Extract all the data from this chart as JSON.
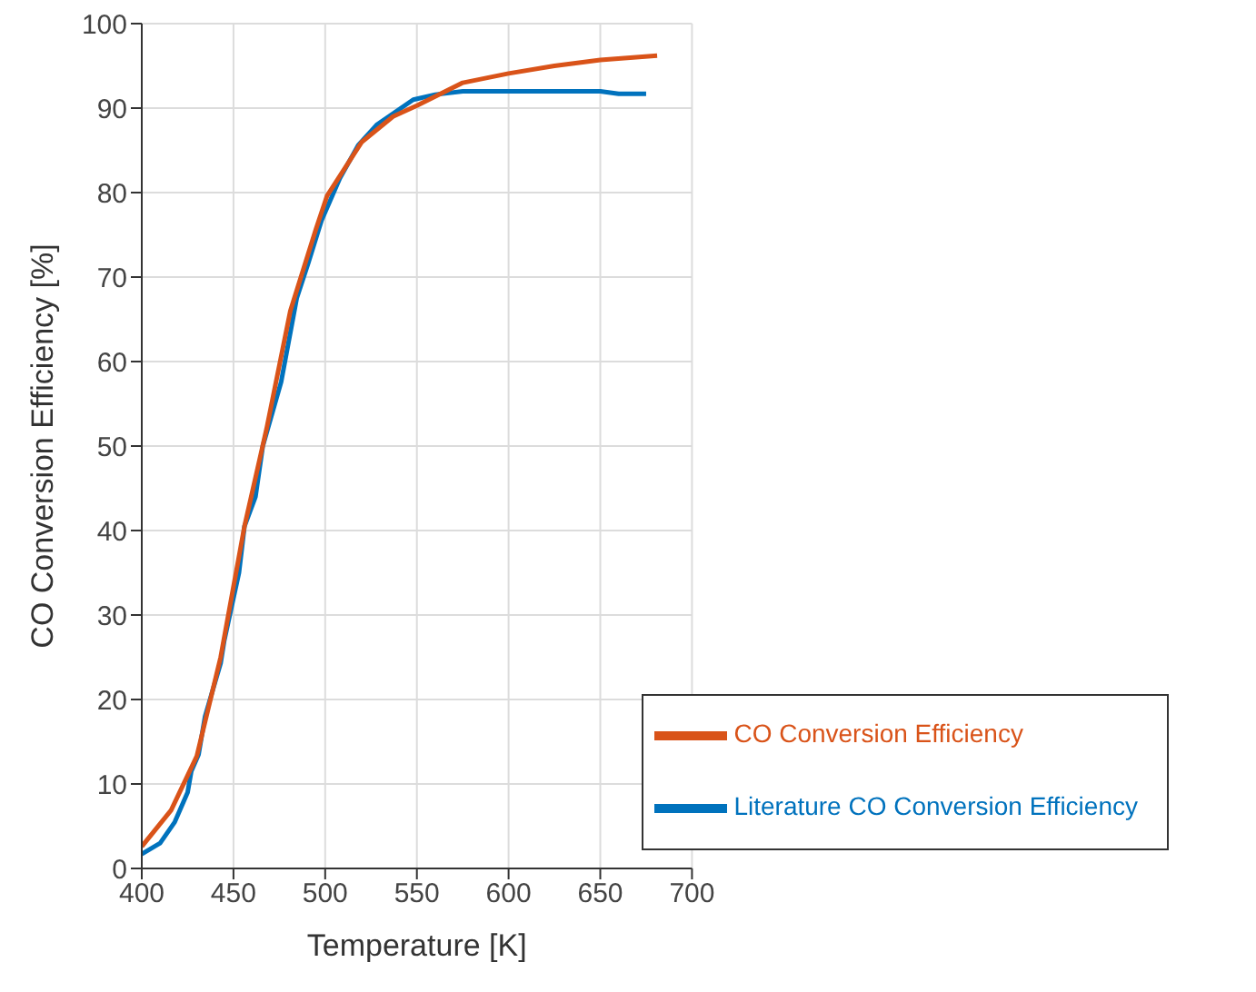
{
  "chart_data": {
    "type": "line",
    "xlabel": "Temperature [K]",
    "ylabel": "CO Conversion Efficiency [%]",
    "xlim": [
      400,
      700
    ],
    "xticks": [
      400,
      450,
      500,
      550,
      600,
      650,
      700
    ],
    "ylim": [
      0,
      100
    ],
    "yticks": [
      0,
      10,
      20,
      30,
      40,
      50,
      60,
      70,
      80,
      90,
      100
    ],
    "grid": true,
    "legend": "bottom right",
    "marker": "none",
    "line_style": "solid",
    "series": [
      {
        "name": "Literature CO Conversion Efficiency",
        "color": "#0072bd",
        "x": [
          400,
          410,
          418,
          425,
          427,
          431,
          434.5,
          443,
          445,
          453,
          456,
          462,
          466,
          476,
          484.5,
          491,
          498,
          508,
          518,
          528,
          548,
          560,
          575,
          600,
          625,
          650,
          660,
          675
        ],
        "values": [
          1.7,
          3,
          5.5,
          9,
          11.5,
          13.5,
          18,
          24.3,
          27,
          35,
          40.5,
          44,
          50,
          57.6,
          67.5,
          71.8,
          76.7,
          81.7,
          85.6,
          88,
          91,
          91.6,
          92,
          92,
          92,
          92,
          91.7,
          91.7
        ]
      },
      {
        "name": "CO Conversion Efficiency",
        "color": "#d95319",
        "x": [
          400,
          416,
          430,
          443,
          456,
          468,
          481,
          495,
          501,
          520,
          537,
          550,
          575,
          600,
          625,
          650,
          681
        ],
        "values": [
          2.6,
          6.9,
          13.3,
          25,
          40.5,
          52,
          66,
          75.7,
          79.6,
          86,
          89,
          90.3,
          93,
          94.1,
          95,
          95.7,
          96.2
        ]
      }
    ]
  }
}
